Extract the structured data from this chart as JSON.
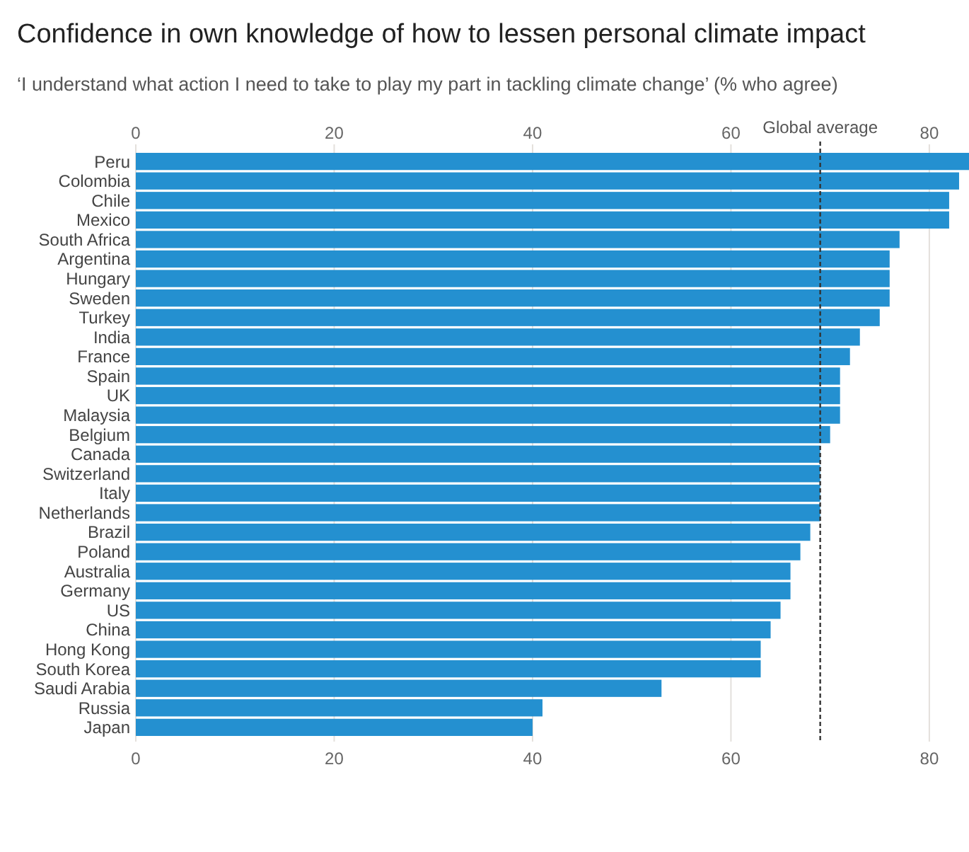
{
  "chart_data": {
    "type": "bar",
    "orientation": "horizontal",
    "title": "Confidence in own knowledge of how to lessen personal climate impact",
    "subtitle": "‘I understand what action I need to take to play my part in tackling climate change’ (% who agree)",
    "categories": [
      "Peru",
      "Colombia",
      "Chile",
      "Mexico",
      "South Africa",
      "Argentina",
      "Hungary",
      "Sweden",
      "Turkey",
      "India",
      "France",
      "Spain",
      "UK",
      "Malaysia",
      "Belgium",
      "Canada",
      "Switzerland",
      "Italy",
      "Netherlands",
      "Brazil",
      "Poland",
      "Australia",
      "Germany",
      "US",
      "China",
      "Hong Kong",
      "South Korea",
      "Saudi Arabia",
      "Russia",
      "Japan"
    ],
    "values": [
      84,
      83,
      82,
      82,
      77,
      76,
      76,
      76,
      75,
      73,
      72,
      71,
      71,
      71,
      70,
      69,
      69,
      69,
      69,
      68,
      67,
      66,
      66,
      65,
      64,
      63,
      63,
      53,
      41,
      40
    ],
    "color": "#2490d0",
    "xlim": [
      0,
      84
    ],
    "xticks": [
      0,
      20,
      40,
      60,
      80
    ],
    "x2lim": [
      0,
      84
    ],
    "x2ticks": [
      0,
      20,
      40,
      60,
      80
    ],
    "grid": "x",
    "ref_lines": [
      {
        "axis": "x",
        "value": 69,
        "label": "Global average",
        "line_style": "dashed",
        "color": "#333333"
      }
    ]
  }
}
